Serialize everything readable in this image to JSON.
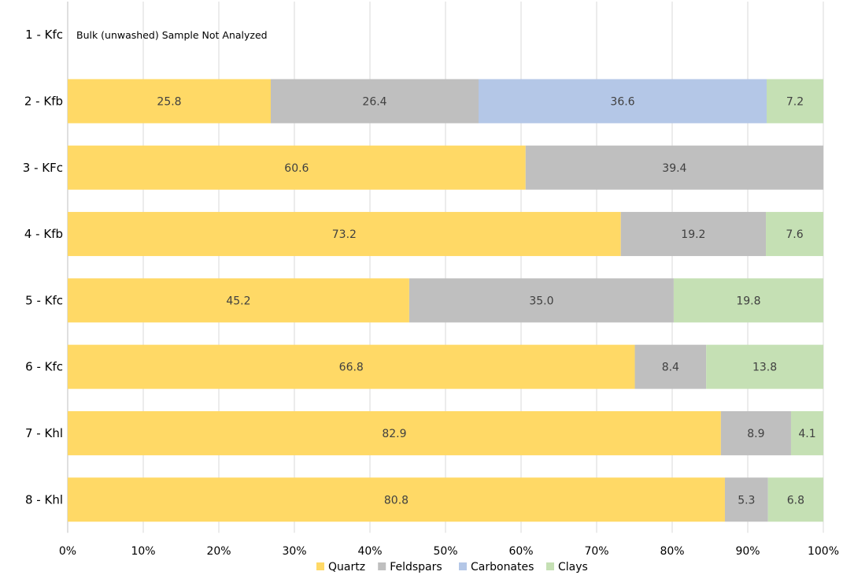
{
  "chart_data": {
    "type": "bar",
    "orientation": "horizontal",
    "stacked": "percent",
    "categories": [
      "1 - Kfc",
      "2 - Kfb",
      "3 - KFc",
      "4 - Kfb",
      "5 - Kfc",
      "6 - Kfc",
      "7 - Khl",
      "8 - Khl"
    ],
    "series": [
      {
        "name": "Quartz",
        "color": "#FFD966",
        "values": [
          null,
          25.8,
          60.6,
          73.2,
          45.2,
          66.8,
          82.9,
          80.8
        ]
      },
      {
        "name": "Feldspars",
        "color": "#BFBFBF",
        "values": [
          null,
          26.4,
          39.4,
          19.2,
          35.0,
          8.4,
          8.9,
          5.3
        ]
      },
      {
        "name": "Carbonates",
        "color": "#B4C7E7",
        "values": [
          null,
          36.6,
          null,
          null,
          null,
          null,
          null,
          null
        ]
      },
      {
        "name": "Clays",
        "color": "#C5E0B4",
        "values": [
          null,
          7.2,
          null,
          7.6,
          19.8,
          13.8,
          4.1,
          6.8
        ]
      }
    ],
    "data_labels": [
      [],
      [
        "25.8",
        "26.4",
        "36.6",
        "7.2"
      ],
      [
        "60.6",
        "39.4"
      ],
      [
        "73.2",
        "19.2",
        "7.6"
      ],
      [
        "45.2",
        "35.0",
        "19.8"
      ],
      [
        "66.8",
        "8.4",
        "13.8"
      ],
      [
        "82.9",
        "8.9",
        "4.1"
      ],
      [
        "80.8",
        "5.3",
        "6.8"
      ]
    ],
    "annotation": "Bulk (unwashed) Sample Not Analyzed",
    "xticks": [
      "0%",
      "10%",
      "20%",
      "30%",
      "40%",
      "50%",
      "60%",
      "70%",
      "80%",
      "90%",
      "100%"
    ],
    "xlim": [
      0,
      100
    ],
    "grid": true,
    "legend_position": "bottom",
    "title": "",
    "xlabel": "",
    "ylabel": ""
  }
}
